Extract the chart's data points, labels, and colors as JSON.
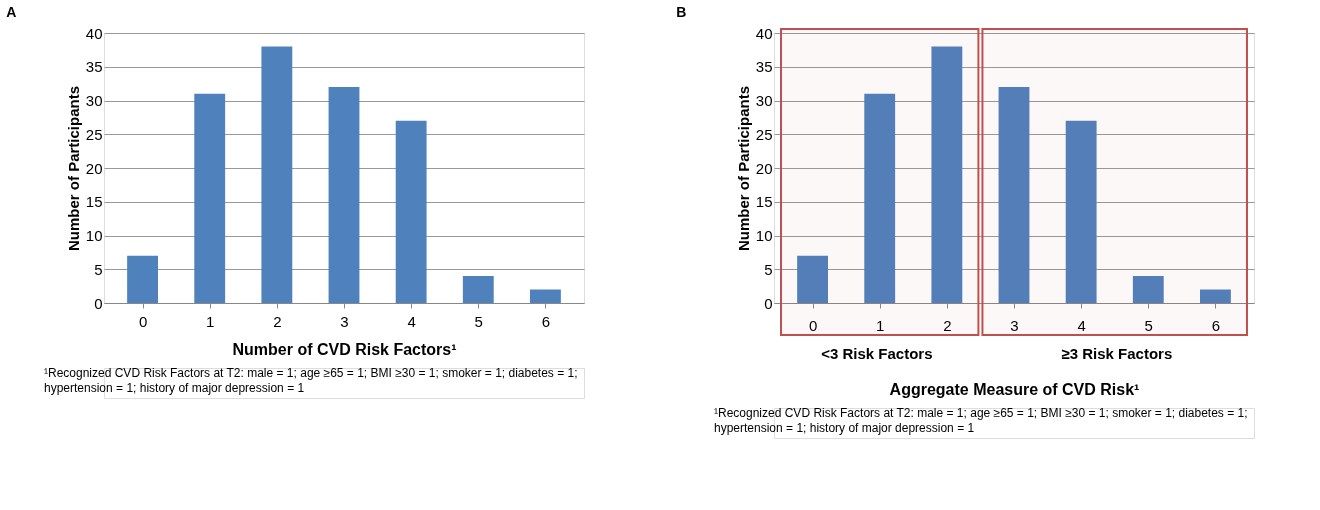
{
  "chart_data": [
    {
      "type": "bar",
      "categories": [
        "0",
        "1",
        "2",
        "3",
        "4",
        "5",
        "6"
      ],
      "values": [
        7,
        31,
        38,
        32,
        27,
        4,
        2
      ],
      "color": "#4f81bd",
      "xlabel": "Number of CVD Risk Factors¹",
      "ylabel": "Number of Participants",
      "ylim": [
        0,
        40
      ],
      "yticks": [
        0,
        5,
        10,
        15,
        20,
        25,
        30,
        35,
        40
      ],
      "grid": "y",
      "annotations": [
        "A",
        "¹Recognized CVD Risk Factors at T2:  male = 1; age ≥65 = 1; BMI ≥30 = 1; smoker = 1; diabetes = 1; hypertension = 1; history of major depression = 1"
      ]
    },
    {
      "type": "bar",
      "categories": [
        "0",
        "1",
        "2",
        "3",
        "4",
        "5",
        "6"
      ],
      "values": [
        7,
        31,
        38,
        32,
        27,
        4,
        2
      ],
      "color": "#4f81bd",
      "xlabel": "Aggregate Measure of CVD Risk¹",
      "ylabel": "Number of Participants",
      "ylim": [
        0,
        40
      ],
      "yticks": [
        0,
        5,
        10,
        15,
        20,
        25,
        30,
        35,
        40
      ],
      "grid": "y",
      "bands": [
        {
          "axis": "x",
          "from": "0",
          "to": "2",
          "label": "<3 Risk Factors",
          "color": "#c0504d"
        },
        {
          "axis": "x",
          "from": "3",
          "to": "6",
          "label": "≥3 Risk Factors",
          "color": "#c0504d"
        }
      ],
      "annotations": [
        "B",
        "¹Recognized CVD Risk Factors at T2:  male = 1; age ≥65 = 1; BMI ≥30 = 1; smoker = 1; diabetes = 1; hypertension = 1; history of major depression = 1"
      ]
    }
  ]
}
